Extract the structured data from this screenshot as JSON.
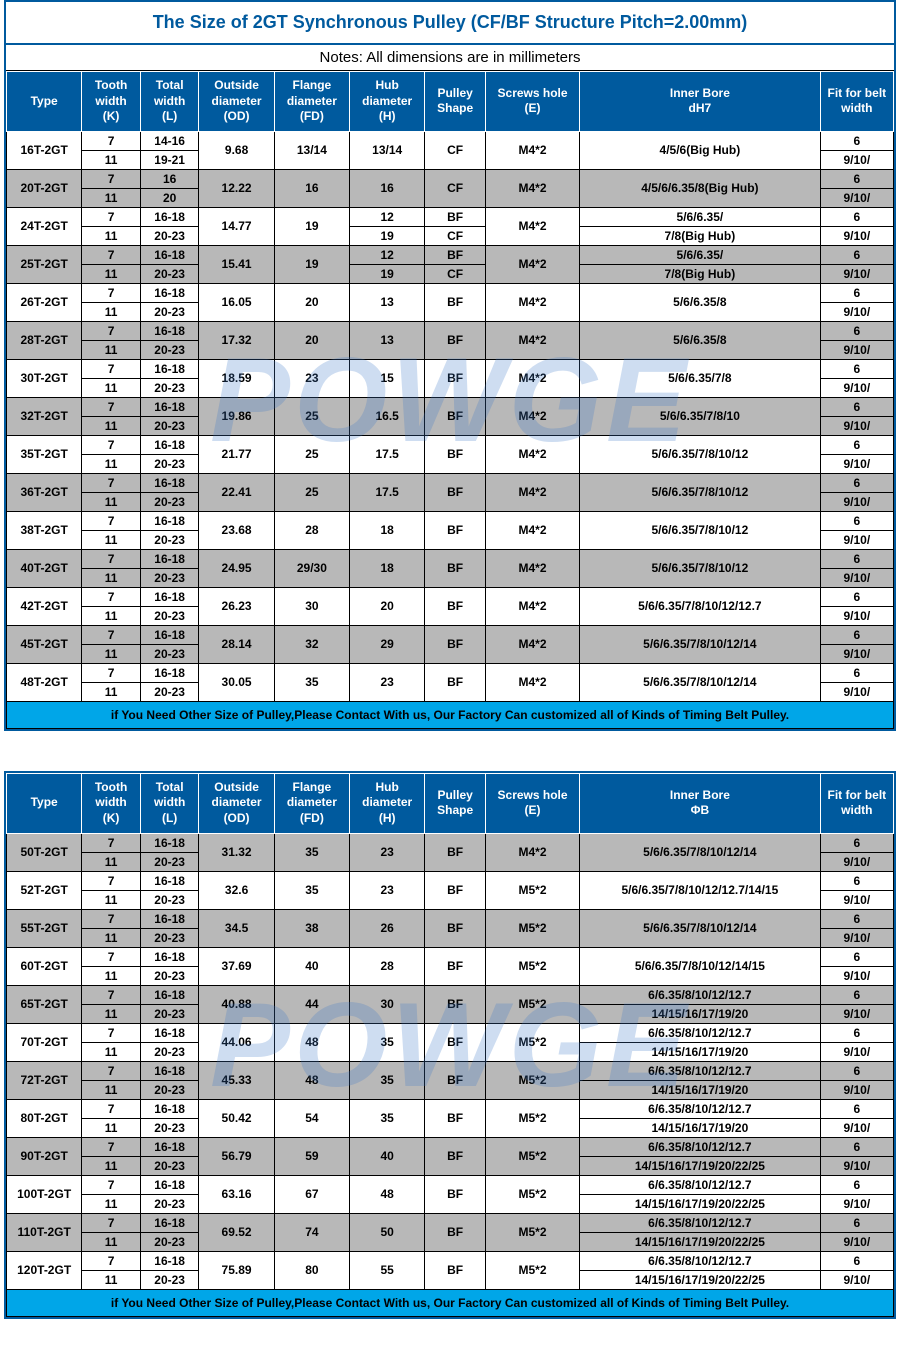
{
  "colors": {
    "headerBg": "#005a9e",
    "headerText": "#ffffff",
    "shadeBg": "#b8b8b8",
    "footerBg": "#00a6e8",
    "watermark": "rgba(60,120,200,0.25)",
    "border": "#000000"
  },
  "titles": {
    "main": "The Size of 2GT Synchronous Pulley (CF/BF Structure Pitch=2.00mm)",
    "notes": "Notes: All dimensions are in millimeters",
    "footer": "if You Need Other Size of Pulley,Please Contact With us, Our Factory Can customized all of Kinds of Timing Belt Pulley."
  },
  "watermark": "POWGE",
  "headers1": [
    "Type",
    "Tooth width (K)",
    "Total width (L)",
    "Outside diameter (OD)",
    "Flange diameter (FD)",
    "Hub diameter (H)",
    "Pulley Shape",
    "Screws hole (E)",
    "Inner Bore dH7",
    "Fit for belt width"
  ],
  "headers2": [
    "Type",
    "Tooth width (K)",
    "Total width (L)",
    "Outside diameter (OD)",
    "Flange diameter (FD)",
    "Hub diameter (H)",
    "Pulley Shape",
    "Screws hole (E)",
    "Inner Bore ΦB",
    "Fit for belt width"
  ],
  "table1": [
    {
      "type": "16T-2GT",
      "shade": false,
      "od": "9.68",
      "fd": "13/14",
      "e": "M4*2",
      "bore": "4/5/6(Big Hub)",
      "rows": [
        {
          "k": "7",
          "l": "14-16",
          "h": "13/14",
          "shape": "CF",
          "fit": "6"
        },
        {
          "k": "11",
          "l": "19-21",
          "h": "",
          "shape": "",
          "fit": "9/10/"
        }
      ],
      "hSpan": true,
      "shapeSpan": true
    },
    {
      "type": "20T-2GT",
      "shade": true,
      "od": "12.22",
      "fd": "16",
      "e": "M4*2",
      "bore": "4/5/6/6.35/8(Big Hub)",
      "rows": [
        {
          "k": "7",
          "l": "16",
          "h": "16",
          "shape": "CF",
          "fit": "6"
        },
        {
          "k": "11",
          "l": "20",
          "h": "",
          "shape": "",
          "fit": "9/10/"
        }
      ],
      "hSpan": true,
      "shapeSpan": true
    },
    {
      "type": "24T-2GT",
      "shade": false,
      "od": "14.77",
      "fd": "19",
      "e": "M4*2",
      "rows": [
        {
          "k": "7",
          "l": "16-18",
          "h": "12",
          "shape": "BF",
          "bore": "5/6/6.35/",
          "fit": "6"
        },
        {
          "k": "11",
          "l": "20-23",
          "h": "19",
          "shape": "CF",
          "bore": "7/8(Big Hub)",
          "fit": "9/10/"
        }
      ]
    },
    {
      "type": "25T-2GT",
      "shade": true,
      "od": "15.41",
      "fd": "19",
      "e": "M4*2",
      "rows": [
        {
          "k": "7",
          "l": "16-18",
          "h": "12",
          "shape": "BF",
          "bore": "5/6/6.35/",
          "fit": "6"
        },
        {
          "k": "11",
          "l": "20-23",
          "h": "19",
          "shape": "CF",
          "bore": "7/8(Big Hub)",
          "fit": "9/10/"
        }
      ]
    },
    {
      "type": "26T-2GT",
      "shade": false,
      "od": "16.05",
      "fd": "20",
      "e": "M4*2",
      "bore": "5/6/6.35/8",
      "rows": [
        {
          "k": "7",
          "l": "16-18",
          "h": "13",
          "shape": "BF",
          "fit": "6"
        },
        {
          "k": "11",
          "l": "20-23",
          "h": "",
          "shape": "",
          "fit": "9/10/"
        }
      ],
      "hSpan": true,
      "shapeSpan": true
    },
    {
      "type": "28T-2GT",
      "shade": true,
      "od": "17.32",
      "fd": "20",
      "e": "M4*2",
      "bore": "5/6/6.35/8",
      "rows": [
        {
          "k": "7",
          "l": "16-18",
          "h": "13",
          "shape": "BF",
          "fit": "6"
        },
        {
          "k": "11",
          "l": "20-23",
          "h": "",
          "shape": "",
          "fit": "9/10/"
        }
      ],
      "hSpan": true,
      "shapeSpan": true
    },
    {
      "type": "30T-2GT",
      "shade": false,
      "od": "18.59",
      "fd": "23",
      "e": "M4*2",
      "bore": "5/6/6.35/7/8",
      "rows": [
        {
          "k": "7",
          "l": "16-18",
          "h": "15",
          "shape": "BF",
          "fit": "6"
        },
        {
          "k": "11",
          "l": "20-23",
          "h": "",
          "shape": "",
          "fit": "9/10/"
        }
      ],
      "hSpan": true,
      "shapeSpan": true
    },
    {
      "type": "32T-2GT",
      "shade": true,
      "od": "19.86",
      "fd": "25",
      "e": "M4*2",
      "bore": "5/6/6.35/7/8/10",
      "rows": [
        {
          "k": "7",
          "l": "16-18",
          "h": "16.5",
          "shape": "BF",
          "fit": "6"
        },
        {
          "k": "11",
          "l": "20-23",
          "h": "",
          "shape": "",
          "fit": "9/10/"
        }
      ],
      "hSpan": true,
      "shapeSpan": true
    },
    {
      "type": "35T-2GT",
      "shade": false,
      "od": "21.77",
      "fd": "25",
      "e": "M4*2",
      "bore": "5/6/6.35/7/8/10/12",
      "rows": [
        {
          "k": "7",
          "l": "16-18",
          "h": "17.5",
          "shape": "BF",
          "fit": "6"
        },
        {
          "k": "11",
          "l": "20-23",
          "h": "",
          "shape": "",
          "fit": "9/10/"
        }
      ],
      "hSpan": true,
      "shapeSpan": true
    },
    {
      "type": "36T-2GT",
      "shade": true,
      "od": "22.41",
      "fd": "25",
      "e": "M4*2",
      "bore": "5/6/6.35/7/8/10/12",
      "rows": [
        {
          "k": "7",
          "l": "16-18",
          "h": "17.5",
          "shape": "BF",
          "fit": "6"
        },
        {
          "k": "11",
          "l": "20-23",
          "h": "",
          "shape": "",
          "fit": "9/10/"
        }
      ],
      "hSpan": true,
      "shapeSpan": true
    },
    {
      "type": "38T-2GT",
      "shade": false,
      "od": "23.68",
      "fd": "28",
      "e": "M4*2",
      "bore": "5/6/6.35/7/8/10/12",
      "rows": [
        {
          "k": "7",
          "l": "16-18",
          "h": "18",
          "shape": "BF",
          "fit": "6"
        },
        {
          "k": "11",
          "l": "20-23",
          "h": "",
          "shape": "",
          "fit": "9/10/"
        }
      ],
      "hSpan": true,
      "shapeSpan": true
    },
    {
      "type": "40T-2GT",
      "shade": true,
      "od": "24.95",
      "fd": "29/30",
      "e": "M4*2",
      "bore": "5/6/6.35/7/8/10/12",
      "rows": [
        {
          "k": "7",
          "l": "16-18",
          "h": "18",
          "shape": "BF",
          "fit": "6"
        },
        {
          "k": "11",
          "l": "20-23",
          "h": "",
          "shape": "",
          "fit": "9/10/"
        }
      ],
      "hSpan": true,
      "shapeSpan": true
    },
    {
      "type": "42T-2GT",
      "shade": false,
      "od": "26.23",
      "fd": "30",
      "e": "M4*2",
      "bore": "5/6/6.35/7/8/10/12/12.7",
      "rows": [
        {
          "k": "7",
          "l": "16-18",
          "h": "20",
          "shape": "BF",
          "fit": "6"
        },
        {
          "k": "11",
          "l": "20-23",
          "h": "",
          "shape": "",
          "fit": "9/10/"
        }
      ],
      "hSpan": true,
      "shapeSpan": true
    },
    {
      "type": "45T-2GT",
      "shade": true,
      "od": "28.14",
      "fd": "32",
      "e": "M4*2",
      "bore": "5/6/6.35/7/8/10/12/14",
      "rows": [
        {
          "k": "7",
          "l": "16-18",
          "h": "29",
          "shape": "BF",
          "fit": "6"
        },
        {
          "k": "11",
          "l": "20-23",
          "h": "",
          "shape": "",
          "fit": "9/10/"
        }
      ],
      "hSpan": true,
      "shapeSpan": true
    },
    {
      "type": "48T-2GT",
      "shade": false,
      "od": "30.05",
      "fd": "35",
      "e": "M4*2",
      "bore": "5/6/6.35/7/8/10/12/14",
      "rows": [
        {
          "k": "7",
          "l": "16-18",
          "h": "23",
          "shape": "BF",
          "fit": "6"
        },
        {
          "k": "11",
          "l": "20-23",
          "h": "",
          "shape": "",
          "fit": "9/10/"
        }
      ],
      "hSpan": true,
      "shapeSpan": true
    }
  ],
  "table2": [
    {
      "type": "50T-2GT",
      "shade": true,
      "od": "31.32",
      "fd": "35",
      "e": "M4*2",
      "bore": "5/6/6.35/7/8/10/12/14",
      "rows": [
        {
          "k": "7",
          "l": "16-18",
          "h": "23",
          "shape": "BF",
          "fit": "6"
        },
        {
          "k": "11",
          "l": "20-23",
          "h": "",
          "shape": "",
          "fit": "9/10/"
        }
      ],
      "hSpan": true,
      "shapeSpan": true
    },
    {
      "type": "52T-2GT",
      "shade": false,
      "od": "32.6",
      "fd": "35",
      "e": "M5*2",
      "bore": "5/6/6.35/7/8/10/12/12.7/14/15",
      "rows": [
        {
          "k": "7",
          "l": "16-18",
          "h": "23",
          "shape": "BF",
          "fit": "6"
        },
        {
          "k": "11",
          "l": "20-23",
          "h": "",
          "shape": "",
          "fit": "9/10/"
        }
      ],
      "hSpan": true,
      "shapeSpan": true
    },
    {
      "type": "55T-2GT",
      "shade": true,
      "od": "34.5",
      "fd": "38",
      "e": "M5*2",
      "bore": "5/6/6.35/7/8/10/12/14",
      "rows": [
        {
          "k": "7",
          "l": "16-18",
          "h": "26",
          "shape": "BF",
          "fit": "6"
        },
        {
          "k": "11",
          "l": "20-23",
          "h": "",
          "shape": "",
          "fit": "9/10/"
        }
      ],
      "hSpan": true,
      "shapeSpan": true
    },
    {
      "type": "60T-2GT",
      "shade": false,
      "od": "37.69",
      "fd": "40",
      "e": "M5*2",
      "bore": "5/6/6.35/7/8/10/12/14/15",
      "rows": [
        {
          "k": "7",
          "l": "16-18",
          "h": "28",
          "shape": "BF",
          "fit": "6"
        },
        {
          "k": "11",
          "l": "20-23",
          "h": "",
          "shape": "",
          "fit": "9/10/"
        }
      ],
      "hSpan": true,
      "shapeSpan": true
    },
    {
      "type": "65T-2GT",
      "shade": true,
      "od": "40.88",
      "fd": "44",
      "e": "M5*2",
      "rows": [
        {
          "k": "7",
          "l": "16-18",
          "h": "30",
          "shape": "BF",
          "bore": "6/6.35/8/10/12/12.7",
          "fit": "6"
        },
        {
          "k": "11",
          "l": "20-23",
          "h": "",
          "shape": "",
          "bore": "14/15/16/17/19/20",
          "fit": "9/10/"
        }
      ],
      "hSpan": true,
      "shapeSpan": true
    },
    {
      "type": "70T-2GT",
      "shade": false,
      "od": "44.06",
      "fd": "48",
      "e": "M5*2",
      "rows": [
        {
          "k": "7",
          "l": "16-18",
          "h": "35",
          "shape": "BF",
          "bore": "6/6.35/8/10/12/12.7",
          "fit": "6"
        },
        {
          "k": "11",
          "l": "20-23",
          "h": "",
          "shape": "",
          "bore": "14/15/16/17/19/20",
          "fit": "9/10/"
        }
      ],
      "hSpan": true,
      "shapeSpan": true
    },
    {
      "type": "72T-2GT",
      "shade": true,
      "od": "45.33",
      "fd": "48",
      "e": "M5*2",
      "rows": [
        {
          "k": "7",
          "l": "16-18",
          "h": "35",
          "shape": "BF",
          "bore": "6/6.35/8/10/12/12.7",
          "fit": "6"
        },
        {
          "k": "11",
          "l": "20-23",
          "h": "",
          "shape": "",
          "bore": "14/15/16/17/19/20",
          "fit": "9/10/"
        }
      ],
      "hSpan": true,
      "shapeSpan": true
    },
    {
      "type": "80T-2GT",
      "shade": false,
      "od": "50.42",
      "fd": "54",
      "e": "M5*2",
      "rows": [
        {
          "k": "7",
          "l": "16-18",
          "h": "35",
          "shape": "BF",
          "bore": "6/6.35/8/10/12/12.7",
          "fit": "6"
        },
        {
          "k": "11",
          "l": "20-23",
          "h": "",
          "shape": "",
          "bore": "14/15/16/17/19/20",
          "fit": "9/10/"
        }
      ],
      "hSpan": true,
      "shapeSpan": true
    },
    {
      "type": "90T-2GT",
      "shade": true,
      "od": "56.79",
      "fd": "59",
      "e": "M5*2",
      "rows": [
        {
          "k": "7",
          "l": "16-18",
          "h": "40",
          "shape": "BF",
          "bore": "6/6.35/8/10/12/12.7",
          "fit": "6"
        },
        {
          "k": "11",
          "l": "20-23",
          "h": "",
          "shape": "",
          "bore": "14/15/16/17/19/20/22/25",
          "fit": "9/10/"
        }
      ],
      "hSpan": true,
      "shapeSpan": true
    },
    {
      "type": "100T-2GT",
      "shade": false,
      "od": "63.16",
      "fd": "67",
      "e": "M5*2",
      "rows": [
        {
          "k": "7",
          "l": "16-18",
          "h": "48",
          "shape": "BF",
          "bore": "6/6.35/8/10/12/12.7",
          "fit": "6"
        },
        {
          "k": "11",
          "l": "20-23",
          "h": "",
          "shape": "",
          "bore": "14/15/16/17/19/20/22/25",
          "fit": "9/10/"
        }
      ],
      "hSpan": true,
      "shapeSpan": true
    },
    {
      "type": "110T-2GT",
      "shade": true,
      "od": "69.52",
      "fd": "74",
      "e": "M5*2",
      "rows": [
        {
          "k": "7",
          "l": "16-18",
          "h": "50",
          "shape": "BF",
          "bore": "6/6.35/8/10/12/12.7",
          "fit": "6"
        },
        {
          "k": "11",
          "l": "20-23",
          "h": "",
          "shape": "",
          "bore": "14/15/16/17/19/20/22/25",
          "fit": "9/10/"
        }
      ],
      "hSpan": true,
      "shapeSpan": true
    },
    {
      "type": "120T-2GT",
      "shade": false,
      "od": "75.89",
      "fd": "80",
      "e": "M5*2",
      "rows": [
        {
          "k": "7",
          "l": "16-18",
          "h": "55",
          "shape": "BF",
          "bore": "6/6.35/8/10/12/12.7",
          "fit": "6"
        },
        {
          "k": "11",
          "l": "20-23",
          "h": "",
          "shape": "",
          "bore": "14/15/16/17/19/20/22/25",
          "fit": "9/10/"
        }
      ],
      "hSpan": true,
      "shapeSpan": true
    }
  ]
}
